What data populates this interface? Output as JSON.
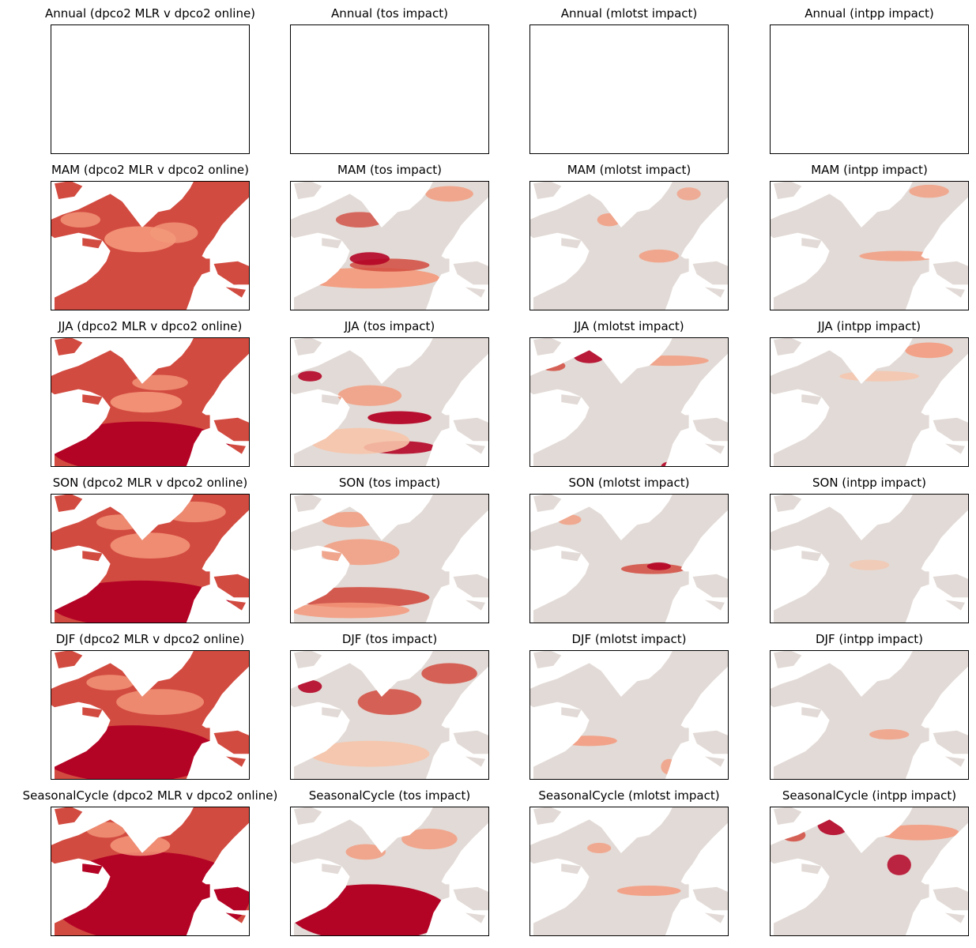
{
  "chart_data": {
    "type": "heatmap",
    "layout": {
      "rows": 6,
      "cols": 4
    },
    "colors": {
      "background": "#ffffff",
      "frame": "#000000",
      "neutral_ocean": "#e2dad6",
      "strong": "#b40426",
      "mid": "#d24b40",
      "light": "#f4987a",
      "pale": "#f7c4aa"
    },
    "panels": [
      {
        "title": "Annual (dpco2 MLR v dpco2 online)",
        "season": "Annual",
        "field": "dpco2",
        "empty": true
      },
      {
        "title": "Annual (tos impact)",
        "season": "Annual",
        "field": "tos",
        "empty": true
      },
      {
        "title": "Annual (mlotst impact)",
        "season": "Annual",
        "field": "mlotst",
        "empty": true
      },
      {
        "title": "Annual (intpp impact)",
        "season": "Annual",
        "field": "intpp",
        "empty": true
      },
      {
        "title": "MAM (dpco2 MLR v dpco2 online)",
        "season": "MAM",
        "field": "dpco2",
        "empty": false
      },
      {
        "title": "MAM (tos impact)",
        "season": "MAM",
        "field": "tos",
        "empty": false
      },
      {
        "title": "MAM (mlotst impact)",
        "season": "MAM",
        "field": "mlotst",
        "empty": false
      },
      {
        "title": "MAM (intpp impact)",
        "season": "MAM",
        "field": "intpp",
        "empty": false
      },
      {
        "title": "JJA (dpco2 MLR v dpco2 online)",
        "season": "JJA",
        "field": "dpco2",
        "empty": false
      },
      {
        "title": "JJA (tos impact)",
        "season": "JJA",
        "field": "tos",
        "empty": false
      },
      {
        "title": "JJA (mlotst impact)",
        "season": "JJA",
        "field": "mlotst",
        "empty": false
      },
      {
        "title": "JJA (intpp impact)",
        "season": "JJA",
        "field": "intpp",
        "empty": false
      },
      {
        "title": "SON (dpco2 MLR v dpco2 online)",
        "season": "SON",
        "field": "dpco2",
        "empty": false
      },
      {
        "title": "SON (tos impact)",
        "season": "SON",
        "field": "tos",
        "empty": false
      },
      {
        "title": "SON (mlotst impact)",
        "season": "SON",
        "field": "mlotst",
        "empty": false
      },
      {
        "title": "SON (intpp impact)",
        "season": "SON",
        "field": "intpp",
        "empty": false
      },
      {
        "title": "DJF (dpco2 MLR v dpco2 online)",
        "season": "DJF",
        "field": "dpco2",
        "empty": false
      },
      {
        "title": "DJF (tos impact)",
        "season": "DJF",
        "field": "tos",
        "empty": false
      },
      {
        "title": "DJF (mlotst impact)",
        "season": "DJF",
        "field": "mlotst",
        "empty": false
      },
      {
        "title": "DJF (intpp impact)",
        "season": "DJF",
        "field": "intpp",
        "empty": false
      },
      {
        "title": "SeasonalCycle (dpco2 MLR v dpco2 online)",
        "season": "SeasonalCycle",
        "field": "dpco2",
        "empty": false
      },
      {
        "title": "SeasonalCycle (tos impact)",
        "season": "SeasonalCycle",
        "field": "tos",
        "empty": false
      },
      {
        "title": "SeasonalCycle (mlotst impact)",
        "season": "SeasonalCycle",
        "field": "mlotst",
        "empty": false
      },
      {
        "title": "SeasonalCycle (intpp impact)",
        "season": "SeasonalCycle",
        "field": "intpp",
        "empty": false
      }
    ]
  }
}
